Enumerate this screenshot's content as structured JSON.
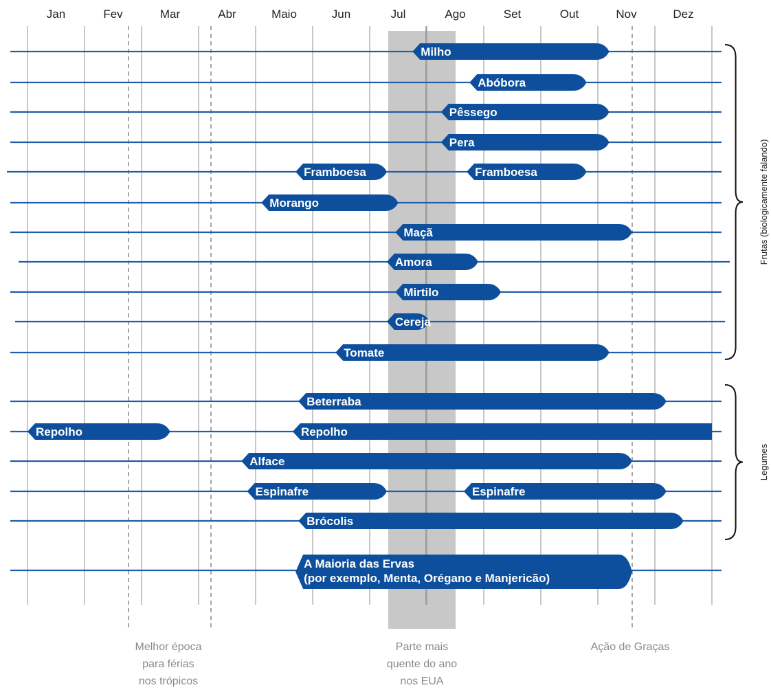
{
  "months": [
    "Jan",
    "Fev",
    "Mar",
    "Abr",
    "Maio",
    "Jun",
    "Jul",
    "Ago",
    "Set",
    "Out",
    "Nov",
    "Dez"
  ],
  "colors": {
    "bar": "#0d4f9c",
    "line": "#1f5ea8",
    "shade": "#c8c8c8",
    "grid": "#a9a9a9"
  },
  "rows": [
    {
      "bars": [
        {
          "label": "Milho",
          "start": 6.75,
          "end": 10.2
        }
      ]
    },
    {
      "bars": [
        {
          "label": "Abóbora",
          "start": 7.75,
          "end": 9.8
        }
      ]
    },
    {
      "bars": [
        {
          "label": "Pêssego",
          "start": 7.25,
          "end": 10.2
        }
      ]
    },
    {
      "bars": [
        {
          "label": "Pera",
          "start": 7.25,
          "end": 10.2
        }
      ]
    },
    {
      "bars": [
        {
          "label": "Framboesa",
          "start": 4.7,
          "end": 6.3
        },
        {
          "label": "Framboesa",
          "start": 7.7,
          "end": 9.8
        }
      ]
    },
    {
      "bars": [
        {
          "label": "Morango",
          "start": 4.1,
          "end": 6.5
        }
      ]
    },
    {
      "bars": [
        {
          "label": "Maçã",
          "start": 6.45,
          "end": 10.6
        }
      ]
    },
    {
      "bars": [
        {
          "label": "Amora",
          "start": 6.3,
          "end": 7.9
        }
      ]
    },
    {
      "bars": [
        {
          "label": "Mirtilo",
          "start": 6.45,
          "end": 8.3
        }
      ]
    },
    {
      "bars": [
        {
          "label": "Cereja",
          "start": 6.3,
          "end": 7.05
        }
      ]
    },
    {
      "bars": [
        {
          "label": "Tomate",
          "start": 5.4,
          "end": 10.2
        }
      ]
    },
    {
      "bars": [
        {
          "label": "Beterraba",
          "start": 4.75,
          "end": 11.2
        }
      ]
    },
    {
      "bars": [
        {
          "label": "Repolho",
          "start": 0.0,
          "end": 2.5
        },
        {
          "label": "Repolho",
          "start": 4.65,
          "end": 12.0
        }
      ]
    },
    {
      "bars": [
        {
          "label": "Alface",
          "start": 3.75,
          "end": 10.6
        }
      ]
    },
    {
      "bars": [
        {
          "label": "Espinafre",
          "start": 3.85,
          "end": 6.3
        },
        {
          "label": "Espinafre",
          "start": 7.65,
          "end": 11.2
        }
      ]
    },
    {
      "bars": [
        {
          "label": "Brócolis",
          "start": 4.75,
          "end": 11.5
        }
      ]
    },
    {
      "bars": [
        {
          "label": "A Maioria das Ervas\n(por exemplo, Menta, Orégano e Manjericão)",
          "start": 4.7,
          "end": 10.6
        }
      ]
    }
  ],
  "groups": [
    {
      "label": "Frutas (biologicamente falando)"
    },
    {
      "label": "Legumes"
    }
  ],
  "notes": [
    {
      "lines": [
        "Melhor época",
        "para férias",
        "nos trópicos"
      ]
    },
    {
      "lines": [
        "Parte mais",
        "quente do ano",
        "nos EUA"
      ]
    },
    {
      "lines": [
        "Ação de Graças"
      ]
    }
  ]
}
